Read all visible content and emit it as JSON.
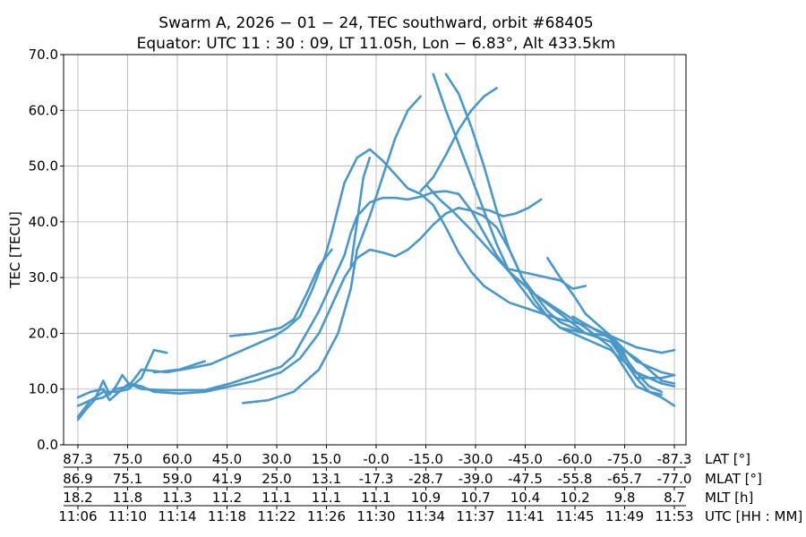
{
  "chart_data": {
    "type": "scatter",
    "title_line1": "Swarm A,  2026 − 01 − 24,  TEC southward,  orbit #68405",
    "title_line2": "Equator:  UTC 11 : 30 : 09,  LT 11.05h,  Lon  − 6.83°,  Alt 433.5km",
    "ylabel": "TEC [TECU]",
    "ylim": [
      0,
      70
    ],
    "yticks": [
      "0.0",
      "10.0",
      "20.0",
      "30.0",
      "40.0",
      "50.0",
      "60.0",
      "70.0"
    ],
    "xlim": [
      0,
      47
    ],
    "grid": true,
    "color": "#4a98c9",
    "axis_rows": [
      {
        "label": "LAT [°]",
        "ticks": [
          "87.3",
          "75.0",
          "60.0",
          "45.0",
          "30.0",
          "15.0",
          "-0.0",
          "-15.0",
          "-30.0",
          "-45.0",
          "-60.0",
          "-75.0",
          "-87.3"
        ]
      },
      {
        "label": "MLAT [°]",
        "ticks": [
          "86.9",
          "75.1",
          "59.0",
          "41.9",
          "25.0",
          "13.1",
          "-17.3",
          "-28.7",
          "-39.0",
          "-47.5",
          "-55.8",
          "-65.7",
          "-77.0"
        ]
      },
      {
        "label": "MLT [h]",
        "ticks": [
          "18.2",
          "11.8",
          "11.3",
          "11.2",
          "11.1",
          "11.1",
          "11.1",
          "10.9",
          "10.7",
          "10.4",
          "10.2",
          "9.8",
          "8.7"
        ]
      },
      {
        "label": "UTC [HH : MM]",
        "ticks": [
          "11:06",
          "11:10",
          "11:14",
          "11:18",
          "11:22",
          "11:26",
          "11:30",
          "11:34",
          "11:37",
          "11:41",
          "11:45",
          "11:49",
          "11:53"
        ]
      }
    ],
    "series": [
      {
        "name": "track-1",
        "points": [
          [
            0.0,
            4.5
          ],
          [
            0.7,
            6.5
          ],
          [
            1.3,
            8.0
          ],
          [
            2.0,
            11.5
          ],
          [
            2.5,
            9.0
          ],
          [
            3.0,
            10.5
          ],
          [
            3.5,
            12.5
          ],
          [
            4.0,
            11.0
          ],
          [
            5.0,
            10.0
          ],
          [
            7.0,
            9.8
          ],
          [
            10.0,
            9.8
          ],
          [
            12.0,
            11.0
          ],
          [
            14.0,
            12.5
          ],
          [
            16.0,
            14.0
          ],
          [
            17.0,
            16.0
          ],
          [
            18.0,
            20.0
          ],
          [
            19.0,
            24.0
          ],
          [
            20.0,
            29.0
          ],
          [
            21.0,
            34.0
          ],
          [
            21.5,
            38.0
          ],
          [
            22.0,
            41.0
          ],
          [
            23.0,
            43.5
          ],
          [
            24.0,
            44.3
          ],
          [
            25.0,
            44.3
          ],
          [
            26.0,
            44.0
          ],
          [
            27.0,
            44.5
          ],
          [
            28.0,
            45.3
          ],
          [
            29.0,
            45.5
          ],
          [
            30.0,
            45.0
          ],
          [
            31.0,
            42.0
          ],
          [
            32.0,
            38.0
          ],
          [
            33.0,
            34.0
          ],
          [
            34.0,
            31.0
          ],
          [
            36.0,
            27.0
          ],
          [
            38.0,
            23.5
          ],
          [
            40.0,
            20.0
          ],
          [
            42.0,
            19.5
          ],
          [
            44.0,
            17.5
          ],
          [
            46.0,
            16.5
          ],
          [
            47.0,
            17.0
          ]
        ]
      },
      {
        "name": "track-2",
        "points": [
          [
            0.0,
            5.0
          ],
          [
            0.5,
            6.5
          ],
          [
            1.0,
            8.0
          ],
          [
            2.0,
            8.5
          ],
          [
            3.0,
            10.0
          ],
          [
            4.0,
            10.5
          ],
          [
            4.5,
            12.0
          ],
          [
            5.0,
            13.5
          ],
          [
            7.0,
            13.0
          ],
          [
            9.0,
            13.8
          ],
          [
            10.5,
            14.5
          ],
          [
            12.0,
            16.0
          ],
          [
            14.0,
            18.0
          ],
          [
            15.5,
            19.5
          ],
          [
            16.5,
            21.0
          ],
          [
            17.5,
            23.0
          ],
          [
            18.5,
            28.0
          ],
          [
            19.5,
            34.0
          ],
          [
            20.0,
            38.0
          ],
          [
            21.0,
            47.0
          ],
          [
            22.0,
            51.5
          ],
          [
            23.0,
            53.0
          ],
          [
            24.0,
            51.0
          ],
          [
            25.0,
            48.5
          ],
          [
            26.0,
            46.0
          ],
          [
            27.0,
            45.0
          ],
          [
            28.0,
            43.0
          ],
          [
            29.0,
            39.0
          ],
          [
            30.0,
            34.5
          ],
          [
            31.0,
            31.0
          ],
          [
            32.0,
            28.5
          ],
          [
            33.0,
            27.0
          ],
          [
            34.0,
            25.5
          ],
          [
            36.0,
            24.0
          ],
          [
            38.0,
            22.5
          ],
          [
            40.0,
            21.5
          ],
          [
            42.0,
            19.5
          ],
          [
            44.0,
            15.0
          ],
          [
            46.0,
            13.0
          ],
          [
            47.0,
            12.5
          ]
        ]
      },
      {
        "name": "track-3",
        "points": [
          [
            0.0,
            8.5
          ],
          [
            1.0,
            9.5
          ],
          [
            2.0,
            10.0
          ],
          [
            2.5,
            8.0
          ],
          [
            3.0,
            9.0
          ],
          [
            4.0,
            11.0
          ],
          [
            5.0,
            10.5
          ],
          [
            6.0,
            9.5
          ],
          [
            8.0,
            9.2
          ],
          [
            10.0,
            9.5
          ],
          [
            12.0,
            10.5
          ],
          [
            14.0,
            11.5
          ],
          [
            16.0,
            13.0
          ],
          [
            17.5,
            15.5
          ],
          [
            19.0,
            20.0
          ],
          [
            20.0,
            25.0
          ],
          [
            21.0,
            30.0
          ],
          [
            22.0,
            33.5
          ],
          [
            23.0,
            35.0
          ],
          [
            24.0,
            34.5
          ],
          [
            25.0,
            33.8
          ],
          [
            26.0,
            35.0
          ],
          [
            27.0,
            37.0
          ],
          [
            28.0,
            39.5
          ],
          [
            29.0,
            41.5
          ],
          [
            30.0,
            42.5
          ],
          [
            31.0,
            42.0
          ],
          [
            32.0,
            41.0
          ],
          [
            33.0,
            39.0
          ],
          [
            34.0,
            35.0
          ],
          [
            35.0,
            30.0
          ],
          [
            36.0,
            26.0
          ],
          [
            37.0,
            23.0
          ],
          [
            38.0,
            21.0
          ],
          [
            40.0,
            20.0
          ],
          [
            42.0,
            18.5
          ],
          [
            44.0,
            15.5
          ],
          [
            46.0,
            11.5
          ],
          [
            47.0,
            11.0
          ]
        ]
      },
      {
        "name": "track-4",
        "points": [
          [
            0.0,
            7.0
          ],
          [
            1.0,
            8.0
          ],
          [
            2.0,
            9.5
          ],
          [
            3.0,
            9.5
          ],
          [
            4.0,
            10.0
          ],
          [
            5.0,
            12.0
          ],
          [
            5.5,
            14.5
          ],
          [
            6.0,
            17.0
          ],
          [
            7.0,
            16.5
          ]
        ]
      },
      {
        "name": "track-5",
        "points": [
          [
            6.0,
            13.0
          ],
          [
            8.0,
            13.5
          ],
          [
            10.0,
            15.0
          ]
        ]
      },
      {
        "name": "track-6",
        "points": [
          [
            13.0,
            7.5
          ],
          [
            15.0,
            8.0
          ],
          [
            17.0,
            9.5
          ],
          [
            19.0,
            13.5
          ],
          [
            20.5,
            20.0
          ],
          [
            21.5,
            28.0
          ],
          [
            22.0,
            35.0
          ],
          [
            23.0,
            41.0
          ],
          [
            24.0,
            48.0
          ],
          [
            25.0,
            55.0
          ],
          [
            26.0,
            60.0
          ],
          [
            27.0,
            62.5
          ]
        ]
      },
      {
        "name": "track-7",
        "points": [
          [
            12.0,
            19.5
          ],
          [
            14.0,
            20.0
          ],
          [
            16.0,
            21.0
          ],
          [
            17.0,
            22.5
          ],
          [
            18.0,
            27.0
          ],
          [
            19.0,
            32.0
          ],
          [
            20.0,
            35.0
          ]
        ]
      },
      {
        "name": "track-8",
        "points": [
          [
            21.5,
            32.0
          ],
          [
            22.0,
            40.0
          ],
          [
            22.5,
            48.0
          ],
          [
            23.0,
            51.5
          ]
        ]
      },
      {
        "name": "track-9",
        "points": [
          [
            28.0,
            66.5
          ],
          [
            29.0,
            60.0
          ],
          [
            30.0,
            54.0
          ],
          [
            31.0,
            48.0
          ],
          [
            32.0,
            42.0
          ],
          [
            33.0,
            36.0
          ],
          [
            34.0,
            31.0
          ],
          [
            35.0,
            28.0
          ],
          [
            36.0,
            25.0
          ],
          [
            37.0,
            23.0
          ],
          [
            38.0,
            21.0
          ],
          [
            40.0,
            19.0
          ],
          [
            42.0,
            17.0
          ],
          [
            44.0,
            13.0
          ],
          [
            46.0,
            11.0
          ],
          [
            47.0,
            10.5
          ]
        ]
      },
      {
        "name": "track-10",
        "points": [
          [
            29.0,
            66.5
          ],
          [
            30.0,
            63.0
          ],
          [
            31.0,
            57.0
          ],
          [
            32.0,
            50.0
          ],
          [
            33.0,
            42.0
          ],
          [
            34.0,
            35.0
          ],
          [
            35.0,
            30.0
          ],
          [
            36.0,
            27.0
          ],
          [
            38.0,
            24.0
          ],
          [
            40.0,
            21.0
          ],
          [
            42.0,
            17.5
          ],
          [
            44.0,
            10.5
          ],
          [
            46.0,
            8.5
          ],
          [
            47.0,
            7.0
          ]
        ]
      },
      {
        "name": "track-11",
        "points": [
          [
            27.5,
            46.5
          ],
          [
            28.5,
            44.0
          ],
          [
            29.5,
            42.0
          ],
          [
            31.0,
            38.5
          ],
          [
            32.0,
            36.0
          ],
          [
            33.0,
            33.5
          ],
          [
            34.0,
            31.0
          ],
          [
            35.0,
            29.0
          ],
          [
            36.0,
            27.0
          ],
          [
            37.0,
            24.0
          ],
          [
            38.0,
            22.0
          ],
          [
            40.0,
            20.0
          ],
          [
            42.0,
            18.5
          ],
          [
            44.0,
            12.0
          ],
          [
            46.0,
            12.0
          ],
          [
            47.0,
            12.5
          ]
        ]
      },
      {
        "name": "track-12",
        "points": [
          [
            27.0,
            45.5
          ],
          [
            28.0,
            48.0
          ],
          [
            29.0,
            52.0
          ],
          [
            30.0,
            56.5
          ],
          [
            31.0,
            60.0
          ],
          [
            32.0,
            62.5
          ],
          [
            33.0,
            64.0
          ]
        ]
      },
      {
        "name": "track-13",
        "points": [
          [
            31.5,
            42.5
          ],
          [
            32.5,
            42.0
          ],
          [
            33.5,
            41.0
          ],
          [
            34.5,
            41.5
          ],
          [
            35.5,
            42.5
          ],
          [
            36.5,
            44.0
          ]
        ]
      },
      {
        "name": "track-14",
        "points": [
          [
            37.0,
            33.5
          ],
          [
            38.0,
            30.0
          ],
          [
            39.0,
            27.0
          ],
          [
            40.0,
            23.5
          ],
          [
            41.0,
            21.5
          ],
          [
            42.0,
            19.5
          ],
          [
            43.0,
            16.5
          ],
          [
            44.0,
            12.0
          ],
          [
            45.0,
            9.5
          ],
          [
            46.0,
            9.0
          ]
        ]
      },
      {
        "name": "track-15",
        "points": [
          [
            34.0,
            31.5
          ],
          [
            36.0,
            30.5
          ],
          [
            38.0,
            29.5
          ],
          [
            39.0,
            28.0
          ],
          [
            40.0,
            28.5
          ]
        ]
      },
      {
        "name": "track-16",
        "points": [
          [
            39.0,
            23.0
          ],
          [
            40.5,
            21.0
          ],
          [
            42.0,
            19.0
          ],
          [
            43.0,
            16.0
          ],
          [
            44.0,
            13.0
          ],
          [
            45.0,
            10.5
          ],
          [
            46.0,
            9.5
          ]
        ]
      }
    ]
  }
}
